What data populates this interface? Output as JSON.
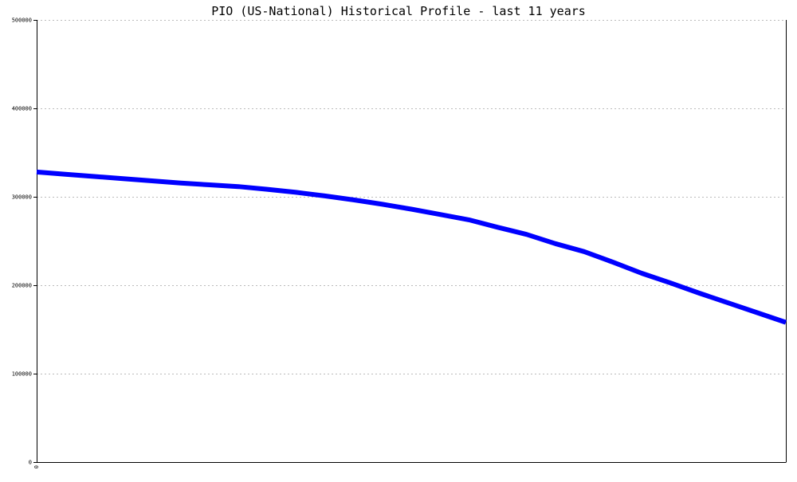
{
  "chart_data": {
    "type": "line",
    "title": "PIO (US-National) Historical Profile - last 11 years",
    "xlabel": "",
    "ylabel": "",
    "x_tick_labels": [
      "0"
    ],
    "y_ticks": [
      0,
      100000,
      200000,
      300000,
      400000,
      500000
    ],
    "y_tick_labels": [
      "0",
      "100000",
      "200000",
      "300000",
      "400000",
      "500000"
    ],
    "ylim": [
      0,
      500000
    ],
    "grid": true,
    "legend": "none",
    "colors": {
      "line": "#0000ff",
      "grid": "#bbbbbb",
      "axis": "#000000"
    },
    "series": [
      {
        "values": [
          328000,
          325500,
          323000,
          320500,
          318000,
          315500,
          313500,
          311500,
          308500,
          305000,
          301000,
          296500,
          291500,
          286000,
          280000,
          274000,
          265500,
          257500,
          247000,
          238000,
          226000,
          213500,
          202500,
          191000,
          180000,
          169000,
          158000
        ]
      }
    ]
  }
}
